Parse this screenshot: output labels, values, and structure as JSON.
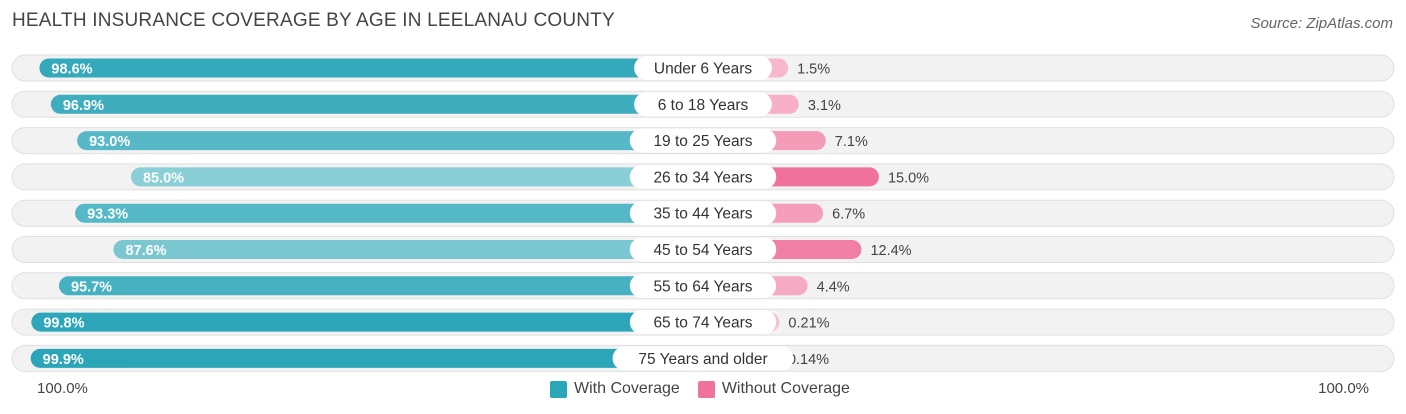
{
  "title": "HEALTH INSURANCE COVERAGE BY AGE IN LEELANAU COUNTY",
  "source": "Source: ZipAtlas.com",
  "axis": {
    "left_label": "100.0%",
    "right_label": "100.0%"
  },
  "legend": {
    "with": {
      "label": "With Coverage",
      "color": "#2ba6b8"
    },
    "without": {
      "label": "Without Coverage",
      "color": "#f0719b"
    }
  },
  "chart_data": {
    "type": "bar",
    "title": "HEALTH INSURANCE COVERAGE BY AGE IN LEELANAU COUNTY",
    "orientation": "horizontal-diverging",
    "categories": [
      "Under 6 Years",
      "6 to 18 Years",
      "19 to 25 Years",
      "26 to 34 Years",
      "35 to 44 Years",
      "45 to 54 Years",
      "55 to 64 Years",
      "65 to 74 Years",
      "75 Years and older"
    ],
    "series": [
      {
        "name": "With Coverage",
        "values": [
          98.6,
          96.9,
          93.0,
          85.0,
          93.3,
          87.6,
          95.7,
          99.8,
          99.9
        ],
        "labels": [
          "98.6%",
          "96.9%",
          "93.0%",
          "85.0%",
          "93.3%",
          "87.6%",
          "95.7%",
          "99.8%",
          "99.9%"
        ]
      },
      {
        "name": "Without Coverage",
        "values": [
          1.5,
          3.1,
          7.1,
          15.0,
          6.7,
          12.4,
          4.4,
          0.21,
          0.14
        ],
        "labels": [
          "1.5%",
          "3.1%",
          "7.1%",
          "15.0%",
          "6.7%",
          "12.4%",
          "4.4%",
          "0.21%",
          "0.14%"
        ]
      }
    ],
    "xlim": [
      0,
      100
    ],
    "legend_position": "bottom-center"
  }
}
